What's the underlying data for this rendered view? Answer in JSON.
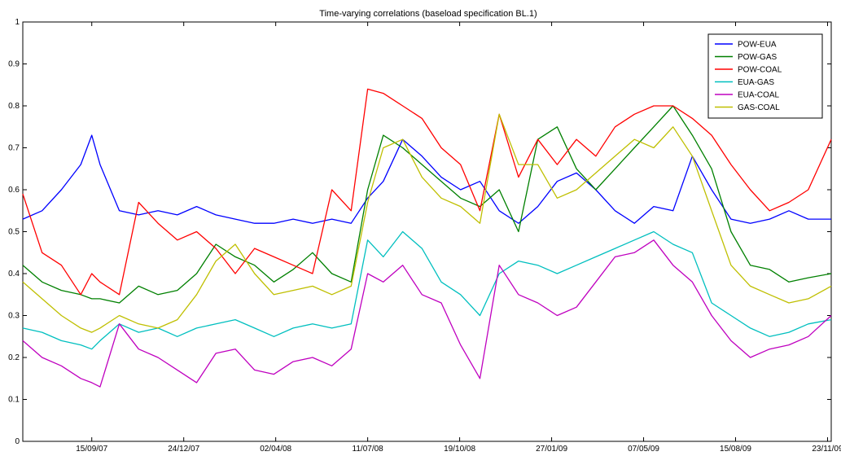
{
  "chart_data": {
    "type": "line",
    "title": "Time-varying correlations (baseload specification BL.1)",
    "xlabel": "",
    "ylabel": "",
    "x_range": [
      "2007-07-02",
      "2009-11-27"
    ],
    "ylim": [
      0,
      1
    ],
    "y_ticks": [
      0,
      0.1,
      0.2,
      0.3,
      0.4,
      0.5,
      0.6,
      0.7,
      0.8,
      0.9,
      1
    ],
    "y_tick_labels": [
      "0",
      "0.1",
      "0.2",
      "0.3",
      "0.4",
      "0.5",
      "0.6",
      "0.7",
      "0.8",
      "0.9",
      "1"
    ],
    "x_ticks": [
      "2007-09-15",
      "2007-12-24",
      "2008-04-02",
      "2008-07-11",
      "2008-10-19",
      "2009-01-27",
      "2009-05-07",
      "2009-08-15",
      "2009-11-23"
    ],
    "x_tick_labels": [
      "15/09/07",
      "24/12/07",
      "02/04/08",
      "11/07/08",
      "19/10/08",
      "27/01/09",
      "07/05/09",
      "15/08/09",
      "23/11/09"
    ],
    "grid": false,
    "legend": "top-right",
    "x": [
      "2007-07-02",
      "2007-07-23",
      "2007-08-13",
      "2007-09-03",
      "2007-09-15",
      "2007-09-24",
      "2007-10-15",
      "2007-11-05",
      "2007-11-26",
      "2007-12-17",
      "2008-01-07",
      "2008-01-28",
      "2008-02-18",
      "2008-03-10",
      "2008-03-31",
      "2008-04-21",
      "2008-05-12",
      "2008-06-02",
      "2008-06-23",
      "2008-07-11",
      "2008-07-28",
      "2008-08-18",
      "2008-09-08",
      "2008-09-29",
      "2008-10-20",
      "2008-11-10",
      "2008-12-01",
      "2008-12-22",
      "2009-01-12",
      "2009-02-02",
      "2009-02-23",
      "2009-03-16",
      "2009-04-06",
      "2009-04-27",
      "2009-05-18",
      "2009-06-08",
      "2009-06-29",
      "2009-07-20",
      "2009-08-10",
      "2009-08-31",
      "2009-09-21",
      "2009-10-12",
      "2009-11-02",
      "2009-11-27"
    ],
    "series": [
      {
        "name": "POW-EUA",
        "color": "#0000ff",
        "values": [
          0.53,
          0.55,
          0.6,
          0.66,
          0.73,
          0.66,
          0.55,
          0.54,
          0.55,
          0.54,
          0.56,
          0.54,
          0.53,
          0.52,
          0.52,
          0.53,
          0.52,
          0.53,
          0.52,
          0.58,
          0.62,
          0.72,
          0.68,
          0.63,
          0.6,
          0.62,
          0.55,
          0.52,
          0.56,
          0.62,
          0.64,
          0.6,
          0.55,
          0.52,
          0.56,
          0.55,
          0.68,
          0.6,
          0.53,
          0.52,
          0.53,
          0.55,
          0.53,
          0.53
        ]
      },
      {
        "name": "POW-GAS",
        "color": "#008000",
        "values": [
          0.42,
          0.38,
          0.36,
          0.35,
          0.34,
          0.34,
          0.33,
          0.37,
          0.35,
          0.36,
          0.4,
          0.47,
          0.44,
          0.42,
          0.38,
          0.41,
          0.45,
          0.4,
          0.38,
          0.6,
          0.73,
          0.7,
          0.66,
          0.62,
          0.58,
          0.56,
          0.6,
          0.5,
          0.72,
          0.75,
          0.65,
          0.6,
          0.65,
          0.7,
          0.75,
          0.8,
          0.73,
          0.65,
          0.5,
          0.42,
          0.41,
          0.38,
          0.39,
          0.4
        ]
      },
      {
        "name": "POW-COAL",
        "color": "#ff0000",
        "values": [
          0.59,
          0.45,
          0.42,
          0.35,
          0.4,
          0.38,
          0.35,
          0.57,
          0.52,
          0.48,
          0.5,
          0.46,
          0.4,
          0.46,
          0.44,
          0.42,
          0.4,
          0.6,
          0.55,
          0.84,
          0.83,
          0.8,
          0.77,
          0.7,
          0.66,
          0.55,
          0.78,
          0.63,
          0.72,
          0.66,
          0.72,
          0.68,
          0.75,
          0.78,
          0.8,
          0.8,
          0.77,
          0.73,
          0.66,
          0.6,
          0.55,
          0.57,
          0.6,
          0.72
        ]
      },
      {
        "name": "EUA-GAS",
        "color": "#00bfbf",
        "values": [
          0.27,
          0.26,
          0.24,
          0.23,
          0.22,
          0.24,
          0.28,
          0.26,
          0.27,
          0.25,
          0.27,
          0.28,
          0.29,
          0.27,
          0.25,
          0.27,
          0.28,
          0.27,
          0.28,
          0.48,
          0.44,
          0.5,
          0.46,
          0.38,
          0.35,
          0.3,
          0.4,
          0.43,
          0.42,
          0.4,
          0.42,
          0.44,
          0.46,
          0.48,
          0.5,
          0.47,
          0.45,
          0.33,
          0.3,
          0.27,
          0.25,
          0.26,
          0.28,
          0.29
        ]
      },
      {
        "name": "EUA-COAL",
        "color": "#bf00bf",
        "values": [
          0.24,
          0.2,
          0.18,
          0.15,
          0.14,
          0.13,
          0.28,
          0.22,
          0.2,
          0.17,
          0.14,
          0.21,
          0.22,
          0.17,
          0.16,
          0.19,
          0.2,
          0.18,
          0.22,
          0.4,
          0.38,
          0.42,
          0.35,
          0.33,
          0.23,
          0.15,
          0.42,
          0.35,
          0.33,
          0.3,
          0.32,
          0.38,
          0.44,
          0.45,
          0.48,
          0.42,
          0.38,
          0.3,
          0.24,
          0.2,
          0.22,
          0.23,
          0.25,
          0.3
        ]
      },
      {
        "name": "GAS-COAL",
        "color": "#bfbf00",
        "values": [
          0.38,
          0.34,
          0.3,
          0.27,
          0.26,
          0.27,
          0.3,
          0.28,
          0.27,
          0.29,
          0.35,
          0.43,
          0.47,
          0.4,
          0.35,
          0.36,
          0.37,
          0.35,
          0.37,
          0.57,
          0.7,
          0.72,
          0.63,
          0.58,
          0.56,
          0.52,
          0.78,
          0.66,
          0.66,
          0.58,
          0.6,
          0.64,
          0.68,
          0.72,
          0.7,
          0.75,
          0.68,
          0.55,
          0.42,
          0.37,
          0.35,
          0.33,
          0.34,
          0.37
        ]
      }
    ]
  }
}
